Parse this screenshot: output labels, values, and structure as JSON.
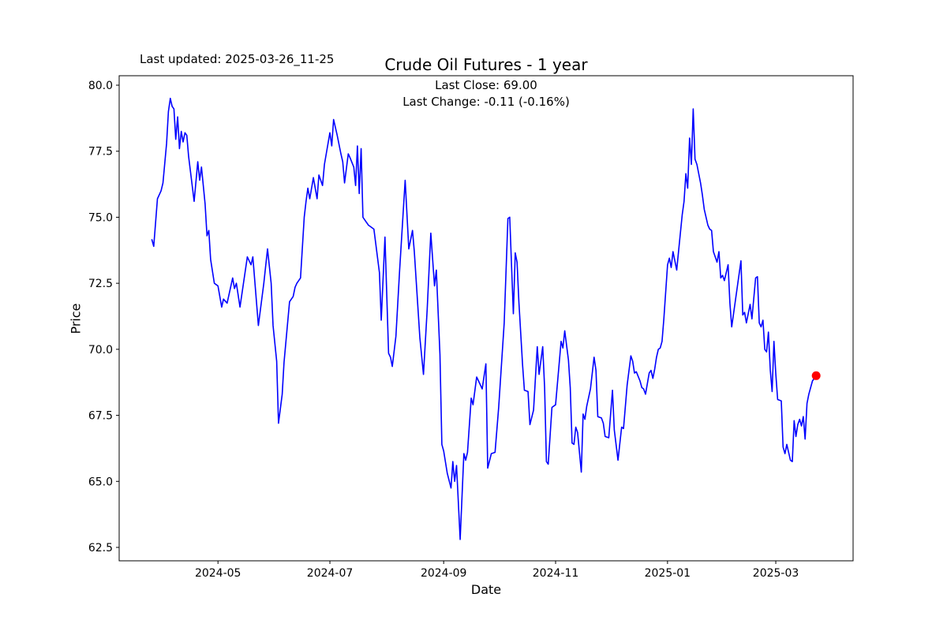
{
  "figure": {
    "last_updated_text": "Last updated: 2025-03-26_11-25",
    "title": "Crude Oil Futures - 1 year",
    "annotation_line1": "Last Close: 69.00",
    "annotation_line2": "Last Change: -0.11 (-0.16%)"
  },
  "chart_data": {
    "type": "line",
    "title": "Crude Oil Futures - 1 year",
    "xlabel": "Date",
    "ylabel": "Price",
    "x_unit": "days since 2024-03-26",
    "line_color": "#0000ff",
    "last_point_marker_color": "#ff0000",
    "last_close": 69.0,
    "last_change": "-0.11 (-0.16%)",
    "ylim": [
      61.99,
      80.36
    ],
    "grid": false,
    "y_ticks": [
      62.5,
      65.0,
      67.5,
      70.0,
      72.5,
      75.0,
      77.5,
      80.0
    ],
    "x_ticks": [
      {
        "label": "2024-05",
        "day": 36
      },
      {
        "label": "2024-07",
        "day": 97
      },
      {
        "label": "2024-09",
        "day": 159
      },
      {
        "label": "2024-11",
        "day": 220
      },
      {
        "label": "2025-01",
        "day": 281
      },
      {
        "label": "2025-03",
        "day": 340
      }
    ],
    "points": [
      [
        0,
        74.15
      ],
      [
        1,
        73.9
      ],
      [
        3,
        75.7
      ],
      [
        5,
        76.0
      ],
      [
        6,
        76.3
      ],
      [
        8,
        77.8
      ],
      [
        9,
        79.0
      ],
      [
        10,
        79.5
      ],
      [
        11,
        79.2
      ],
      [
        12,
        79.1
      ],
      [
        13,
        77.95
      ],
      [
        14,
        78.8
      ],
      [
        15,
        77.6
      ],
      [
        16,
        78.25
      ],
      [
        17,
        77.85
      ],
      [
        18,
        78.2
      ],
      [
        19,
        78.1
      ],
      [
        20,
        77.3
      ],
      [
        23,
        75.6
      ],
      [
        25,
        77.1
      ],
      [
        26,
        76.4
      ],
      [
        27,
        76.9
      ],
      [
        29,
        75.5
      ],
      [
        30,
        74.3
      ],
      [
        31,
        74.5
      ],
      [
        32,
        73.4
      ],
      [
        34,
        72.5
      ],
      [
        35,
        72.45
      ],
      [
        36,
        72.4
      ],
      [
        38,
        71.6
      ],
      [
        39,
        71.9
      ],
      [
        41,
        71.75
      ],
      [
        44,
        72.7
      ],
      [
        45,
        72.3
      ],
      [
        46,
        72.5
      ],
      [
        48,
        71.6
      ],
      [
        52,
        73.5
      ],
      [
        54,
        73.2
      ],
      [
        55,
        73.5
      ],
      [
        58,
        70.9
      ],
      [
        61,
        72.5
      ],
      [
        63,
        73.8
      ],
      [
        65,
        72.5
      ],
      [
        66,
        70.9
      ],
      [
        68,
        69.55
      ],
      [
        69,
        67.2
      ],
      [
        71,
        68.3
      ],
      [
        72,
        69.5
      ],
      [
        75,
        71.8
      ],
      [
        76,
        71.9
      ],
      [
        77,
        72.0
      ],
      [
        78,
        72.35
      ],
      [
        79,
        72.5
      ],
      [
        81,
        72.7
      ],
      [
        83,
        75.0
      ],
      [
        84,
        75.6
      ],
      [
        85,
        76.1
      ],
      [
        86,
        75.7
      ],
      [
        88,
        76.5
      ],
      [
        90,
        75.7
      ],
      [
        91,
        76.6
      ],
      [
        93,
        76.2
      ],
      [
        94,
        77.0
      ],
      [
        97,
        78.2
      ],
      [
        98,
        77.7
      ],
      [
        99,
        78.7
      ],
      [
        101,
        78.1
      ],
      [
        103,
        77.4
      ],
      [
        104,
        77.1
      ],
      [
        105,
        76.3
      ],
      [
        107,
        77.4
      ],
      [
        108,
        77.25
      ],
      [
        110,
        76.9
      ],
      [
        111,
        76.2
      ],
      [
        112,
        77.7
      ],
      [
        113,
        75.9
      ],
      [
        114,
        77.6
      ],
      [
        115,
        75.0
      ],
      [
        116,
        74.9
      ],
      [
        118,
        74.7
      ],
      [
        119,
        74.65
      ],
      [
        121,
        74.55
      ],
      [
        124,
        72.9
      ],
      [
        125,
        71.1
      ],
      [
        127,
        74.25
      ],
      [
        129,
        69.85
      ],
      [
        130,
        69.7
      ],
      [
        131,
        69.35
      ],
      [
        133,
        70.5
      ],
      [
        135,
        73.0
      ],
      [
        138,
        76.4
      ],
      [
        140,
        73.8
      ],
      [
        142,
        74.5
      ],
      [
        143,
        73.7
      ],
      [
        146,
        70.45
      ],
      [
        148,
        69.05
      ],
      [
        150,
        71.5
      ],
      [
        152,
        74.4
      ],
      [
        154,
        72.4
      ],
      [
        155,
        73.0
      ],
      [
        157,
        69.8
      ],
      [
        158,
        66.4
      ],
      [
        159,
        66.15
      ],
      [
        161,
        65.3
      ],
      [
        163,
        64.75
      ],
      [
        164,
        65.75
      ],
      [
        165,
        65.0
      ],
      [
        166,
        65.6
      ],
      [
        168,
        62.8
      ],
      [
        170,
        66.05
      ],
      [
        171,
        65.8
      ],
      [
        172,
        66.1
      ],
      [
        174,
        68.15
      ],
      [
        175,
        67.9
      ],
      [
        177,
        68.95
      ],
      [
        178,
        68.8
      ],
      [
        180,
        68.5
      ],
      [
        182,
        69.45
      ],
      [
        183,
        65.5
      ],
      [
        185,
        66.05
      ],
      [
        187,
        66.1
      ],
      [
        189,
        67.8
      ],
      [
        192,
        71.0
      ],
      [
        194,
        74.95
      ],
      [
        195,
        75.0
      ],
      [
        197,
        71.35
      ],
      [
        198,
        73.65
      ],
      [
        199,
        73.3
      ],
      [
        200,
        71.8
      ],
      [
        202,
        69.4
      ],
      [
        203,
        68.45
      ],
      [
        205,
        68.4
      ],
      [
        206,
        67.15
      ],
      [
        208,
        67.7
      ],
      [
        210,
        70.1
      ],
      [
        211,
        69.05
      ],
      [
        213,
        70.1
      ],
      [
        214,
        68.55
      ],
      [
        215,
        65.75
      ],
      [
        216,
        65.65
      ],
      [
        218,
        67.8
      ],
      [
        220,
        67.9
      ],
      [
        223,
        70.3
      ],
      [
        224,
        70.05
      ],
      [
        225,
        70.7
      ],
      [
        227,
        69.6
      ],
      [
        228,
        68.55
      ],
      [
        229,
        66.45
      ],
      [
        230,
        66.4
      ],
      [
        231,
        67.05
      ],
      [
        232,
        66.85
      ],
      [
        234,
        65.35
      ],
      [
        235,
        67.55
      ],
      [
        236,
        67.35
      ],
      [
        237,
        67.85
      ],
      [
        239,
        68.5
      ],
      [
        241,
        69.7
      ],
      [
        242,
        69.2
      ],
      [
        243,
        67.45
      ],
      [
        245,
        67.4
      ],
      [
        246,
        67.2
      ],
      [
        247,
        66.7
      ],
      [
        249,
        66.65
      ],
      [
        251,
        68.45
      ],
      [
        252,
        66.95
      ],
      [
        254,
        65.8
      ],
      [
        256,
        67.05
      ],
      [
        257,
        67.0
      ],
      [
        259,
        68.65
      ],
      [
        261,
        69.75
      ],
      [
        262,
        69.55
      ],
      [
        263,
        69.1
      ],
      [
        264,
        69.15
      ],
      [
        266,
        68.8
      ],
      [
        267,
        68.55
      ],
      [
        268,
        68.5
      ],
      [
        269,
        68.3
      ],
      [
        271,
        69.1
      ],
      [
        272,
        69.2
      ],
      [
        273,
        68.9
      ],
      [
        274,
        69.25
      ],
      [
        275,
        69.7
      ],
      [
        276,
        70.0
      ],
      [
        277,
        70.05
      ],
      [
        278,
        70.3
      ],
      [
        279,
        71.15
      ],
      [
        281,
        73.2
      ],
      [
        282,
        73.45
      ],
      [
        283,
        73.1
      ],
      [
        284,
        73.7
      ],
      [
        286,
        73.0
      ],
      [
        287,
        73.7
      ],
      [
        289,
        75.1
      ],
      [
        290,
        75.6
      ],
      [
        291,
        76.65
      ],
      [
        292,
        76.1
      ],
      [
        293,
        78.0
      ],
      [
        294,
        77.0
      ],
      [
        295,
        79.1
      ],
      [
        296,
        77.2
      ],
      [
        297,
        77.0
      ],
      [
        299,
        76.3
      ],
      [
        300,
        75.85
      ],
      [
        301,
        75.3
      ],
      [
        303,
        74.7
      ],
      [
        304,
        74.55
      ],
      [
        305,
        74.5
      ],
      [
        306,
        73.7
      ],
      [
        308,
        73.3
      ],
      [
        309,
        73.7
      ],
      [
        310,
        72.7
      ],
      [
        311,
        72.8
      ],
      [
        312,
        72.6
      ],
      [
        314,
        73.2
      ],
      [
        315,
        71.75
      ],
      [
        316,
        70.85
      ],
      [
        321,
        73.35
      ],
      [
        322,
        71.3
      ],
      [
        323,
        71.4
      ],
      [
        324,
        71.0
      ],
      [
        326,
        71.7
      ],
      [
        327,
        71.15
      ],
      [
        329,
        72.7
      ],
      [
        330,
        72.75
      ],
      [
        331,
        71.0
      ],
      [
        332,
        70.85
      ],
      [
        333,
        71.1
      ],
      [
        334,
        70.0
      ],
      [
        335,
        69.9
      ],
      [
        336,
        70.65
      ],
      [
        337,
        69.2
      ],
      [
        338,
        68.4
      ],
      [
        339,
        70.3
      ],
      [
        340,
        69.1
      ],
      [
        341,
        68.1
      ],
      [
        343,
        68.05
      ],
      [
        344,
        66.3
      ],
      [
        345,
        66.05
      ],
      [
        346,
        66.4
      ],
      [
        347,
        66.1
      ],
      [
        348,
        65.8
      ],
      [
        349,
        65.75
      ],
      [
        350,
        67.3
      ],
      [
        351,
        66.7
      ],
      [
        352,
        67.15
      ],
      [
        353,
        67.35
      ],
      [
        354,
        67.1
      ],
      [
        355,
        67.45
      ],
      [
        356,
        66.6
      ],
      [
        357,
        67.95
      ],
      [
        358,
        68.3
      ],
      [
        360,
        68.8
      ],
      [
        362,
        69.0
      ]
    ]
  }
}
